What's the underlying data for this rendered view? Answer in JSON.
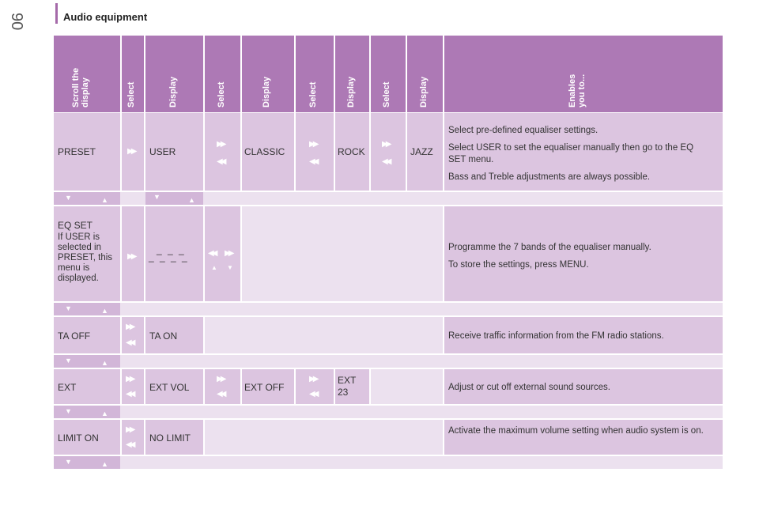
{
  "page": {
    "number": "90",
    "section": "Audio equipment"
  },
  "headers": [
    "Scroll the display",
    "Select",
    "Display",
    "Select",
    "Display",
    "Select",
    "Display",
    "Select",
    "Display",
    "Enables you to..."
  ],
  "rows": {
    "preset": {
      "c1": "PRESET",
      "c3": "USER",
      "c5": "CLASSIC",
      "c7": "ROCK",
      "c9": "JAZZ",
      "desc": [
        "Select pre-defined equaliser settings.",
        "Select USER to set the equaliser manually then go to the EQ SET menu.",
        "Bass and Treble adjustments are always possible."
      ]
    },
    "eqset": {
      "c1_title": "EQ SET",
      "c1_note": "If USER is selected in PRESET, this menu is displayed.",
      "c3_top": "_ _ _",
      "c3_bottom": "_ _ _ _",
      "desc": [
        "Programme the 7 bands of the equaliser manually.",
        "To store the settings, press MENU."
      ]
    },
    "ta": {
      "c1": "TA OFF",
      "c3": "TA ON",
      "desc": "Receive traffic information from the FM radio stations."
    },
    "ext": {
      "c1": "EXT",
      "c3": "EXT VOL",
      "c5": "EXT OFF",
      "c7": "EXT 23",
      "desc": "Adjust or cut off external sound sources."
    },
    "limit": {
      "c1": "LIMIT ON",
      "c3": "NO LIMIT",
      "desc": "Activate the maximum volume setting when audio system is on."
    }
  },
  "icons": {
    "next": "fast-forward-icon",
    "prev": "rewind-icon",
    "down": "down-arrow-icon",
    "up": "up-arrow-icon"
  }
}
